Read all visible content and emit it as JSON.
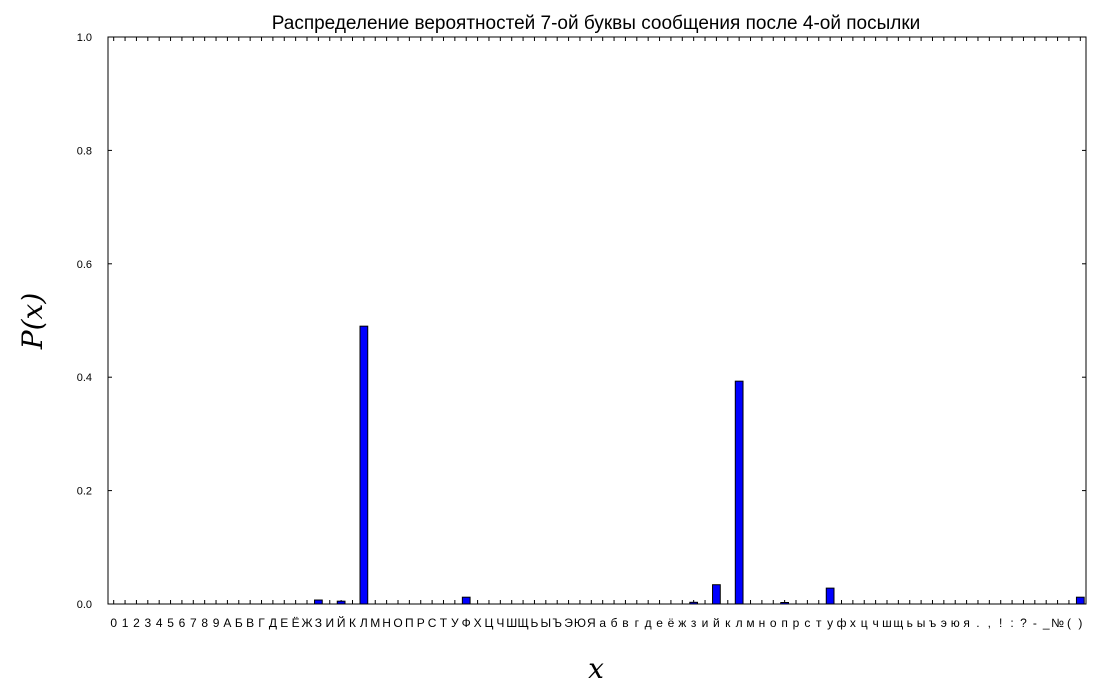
{
  "chart_data": {
    "type": "bar",
    "title": "Распределение вероятностей 7-ой буквы сообщения после 4-ой посылки",
    "xlabel": "x",
    "ylabel": "P(x)",
    "ylim": [
      0,
      1.0
    ],
    "yticks": [
      "0.0",
      "0.2",
      "0.4",
      "0.6",
      "0.8",
      "1.0"
    ],
    "grid": false,
    "bar_color": "#0000ff",
    "categories": [
      "0",
      "1",
      "2",
      "3",
      "4",
      "5",
      "6",
      "7",
      "8",
      "9",
      "А",
      "Б",
      "В",
      "Г",
      "Д",
      "Е",
      "Ё",
      "Ж",
      "З",
      "И",
      "Й",
      "К",
      "Л",
      "М",
      "Н",
      "О",
      "П",
      "Р",
      "С",
      "Т",
      "У",
      "Ф",
      "Х",
      "Ц",
      "Ч",
      "Ш",
      "Щ",
      "Ь",
      "Ы",
      "Ъ",
      "Э",
      "Ю",
      "Я",
      "а",
      "б",
      "в",
      "г",
      "д",
      "е",
      "ё",
      "ж",
      "з",
      "и",
      "й",
      "к",
      "л",
      "м",
      "н",
      "о",
      "п",
      "р",
      "с",
      "т",
      "у",
      "ф",
      "х",
      "ц",
      "ч",
      "ш",
      "щ",
      "ь",
      "ы",
      "ъ",
      "э",
      "ю",
      "я",
      ".",
      ",",
      "!",
      ":",
      "?",
      "-",
      "_",
      "№",
      "(",
      ")"
    ],
    "values": [
      0,
      0,
      0,
      0,
      0,
      0,
      0,
      0,
      0,
      0,
      0,
      0,
      0,
      0,
      0,
      0,
      0,
      0,
      0.007,
      0,
      0.005,
      0,
      0.49,
      0,
      0,
      0,
      0,
      0,
      0,
      0,
      0,
      0.012,
      0,
      0,
      0,
      0,
      0,
      0,
      0,
      0,
      0,
      0,
      0,
      0,
      0,
      0,
      0,
      0,
      0,
      0,
      0,
      0.003,
      0,
      0.034,
      0,
      0.393,
      0,
      0,
      0,
      0.002,
      0,
      0,
      0,
      0.028,
      0,
      0,
      0,
      0,
      0,
      0,
      0,
      0,
      0,
      0,
      0,
      0,
      0,
      0,
      0,
      0,
      0,
      0,
      0,
      0,
      0,
      0.012
    ]
  }
}
